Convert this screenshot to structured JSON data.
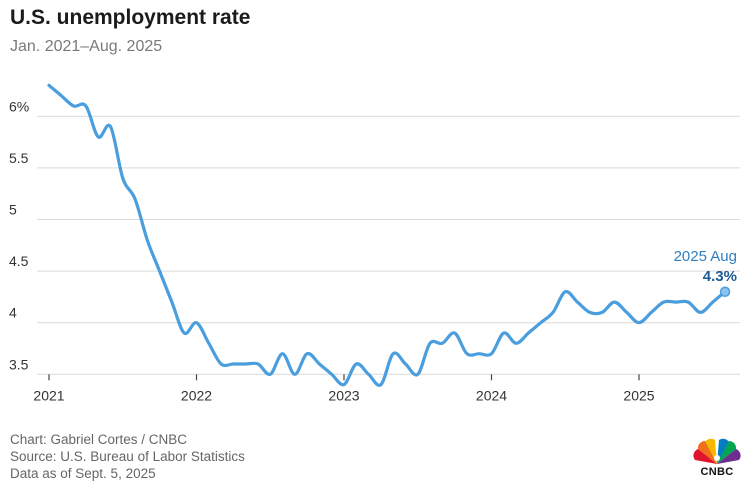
{
  "header": {
    "title": "U.S. unemployment rate",
    "subtitle": "Jan. 2021–Aug. 2025"
  },
  "footer": {
    "credit": "Chart: Gabriel Cortes / CNBC",
    "source": "Source: U.S. Bureau of Labor Statistics",
    "asof": "Data as of Sept. 5, 2025"
  },
  "logo": {
    "text": "CNBC",
    "icon": "peacock-icon"
  },
  "colors": {
    "line": "#4a9ede",
    "annotation": "#2f7fc1",
    "annotation_value": "#1e5a96",
    "grid": "#d9d9d9"
  },
  "chart_data": {
    "type": "line",
    "x_ticks": [
      "2021",
      "2022",
      "2023",
      "2024",
      "2025"
    ],
    "y_ticks": [
      {
        "value": 3.5,
        "label": "3.5"
      },
      {
        "value": 4,
        "label": "4"
      },
      {
        "value": 4.5,
        "label": "4.5"
      },
      {
        "value": 5,
        "label": "5"
      },
      {
        "value": 5.5,
        "label": "5.5"
      },
      {
        "value": 6,
        "label": "6%"
      }
    ],
    "ylim": [
      3.4,
      6.4
    ],
    "grid": "horizontal",
    "x": [
      "2021-01",
      "2021-02",
      "2021-03",
      "2021-04",
      "2021-05",
      "2021-06",
      "2021-07",
      "2021-08",
      "2021-09",
      "2021-10",
      "2021-11",
      "2021-12",
      "2022-01",
      "2022-02",
      "2022-03",
      "2022-04",
      "2022-05",
      "2022-06",
      "2022-07",
      "2022-08",
      "2022-09",
      "2022-10",
      "2022-11",
      "2022-12",
      "2023-01",
      "2023-02",
      "2023-03",
      "2023-04",
      "2023-05",
      "2023-06",
      "2023-07",
      "2023-08",
      "2023-09",
      "2023-10",
      "2023-11",
      "2023-12",
      "2024-01",
      "2024-02",
      "2024-03",
      "2024-04",
      "2024-05",
      "2024-06",
      "2024-07",
      "2024-08",
      "2024-09",
      "2024-10",
      "2024-11",
      "2024-12",
      "2025-01",
      "2025-02",
      "2025-03",
      "2025-04",
      "2025-05",
      "2025-06",
      "2025-07",
      "2025-08"
    ],
    "values": [
      6.3,
      6.2,
      6.1,
      6.1,
      5.8,
      5.9,
      5.4,
      5.2,
      4.8,
      4.5,
      4.2,
      3.9,
      4.0,
      3.8,
      3.6,
      3.6,
      3.6,
      3.6,
      3.5,
      3.7,
      3.5,
      3.7,
      3.6,
      3.5,
      3.4,
      3.6,
      3.5,
      3.4,
      3.7,
      3.6,
      3.5,
      3.8,
      3.8,
      3.9,
      3.7,
      3.7,
      3.7,
      3.9,
      3.8,
      3.9,
      4.0,
      4.1,
      4.3,
      4.2,
      4.1,
      4.1,
      4.2,
      4.1,
      4.0,
      4.1,
      4.2,
      4.2,
      4.2,
      4.1,
      4.2,
      4.3
    ],
    "annotation": {
      "label": "2025 Aug",
      "value_label": "4.3%"
    }
  }
}
